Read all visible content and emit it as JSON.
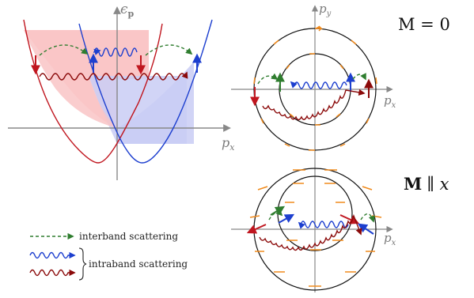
{
  "labels": {
    "energy_axis": "ϵ",
    "energy_sub": "p",
    "px_axis_left": "p",
    "px_axis_left_sub": "x",
    "py_axis": "p",
    "py_axis_sub": "y",
    "px_axis_top": "p",
    "px_axis_top_sub": "x",
    "px_axis_bottom": "p",
    "px_axis_bottom_sub": "x",
    "panel_top": "M = 0",
    "panel_bottom_bold": "M",
    "panel_bottom_rest": "∥ x"
  },
  "legend": {
    "interband": "interband scattering",
    "intraband": "intraband scattering"
  },
  "colors": {
    "red": "#c0161f",
    "blue": "#1d3fcf",
    "darkred": "#8b0a0a",
    "green": "#2f7d2f",
    "orange": "#f08a1c",
    "pink_fill": "#f9c4c6",
    "blue_fill": "#c9cdf5",
    "axis": "#888888"
  }
}
